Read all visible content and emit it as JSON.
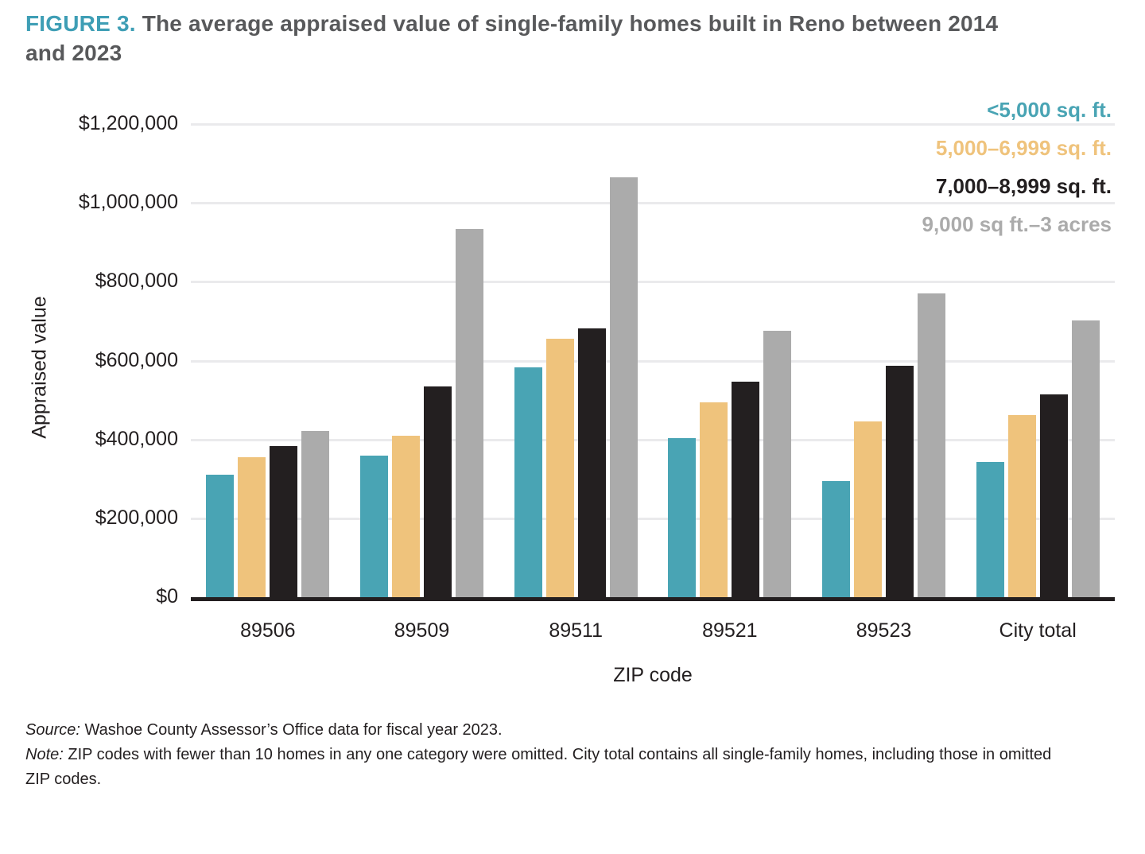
{
  "figure": {
    "label": "FIGURE 3.",
    "title": "The average appraised value of single-family homes built in Reno between 2014 and 2023"
  },
  "chart_data": {
    "type": "bar",
    "title": "FIGURE 3. The average appraised value of single-family homes built in Reno between 2014 and 2023",
    "categories": [
      "89506",
      "89509",
      "89511",
      "89521",
      "89523",
      "City total"
    ],
    "series": [
      {
        "name": "<5,000 sq. ft.",
        "color": "#49A4B4",
        "values": [
          310000,
          360000,
          583000,
          404000,
          295000,
          343000
        ]
      },
      {
        "name": "5,000–6,999 sq. ft.",
        "color": "#EFC37C",
        "values": [
          355000,
          410000,
          655000,
          494000,
          445000,
          461000
        ]
      },
      {
        "name": "7,000–8,999 sq. ft.",
        "color": "#231F20",
        "values": [
          383000,
          535000,
          682000,
          546000,
          586000,
          514000
        ]
      },
      {
        "name": "9,000 sq ft.–3 acres",
        "color": "#ABABAB",
        "values": [
          421000,
          933000,
          1065000,
          675000,
          770000,
          701000
        ]
      }
    ],
    "xlabel": "ZIP code",
    "ylabel": "Appraised value",
    "ylim": [
      0,
      1200000
    ],
    "yticks": [
      {
        "value": 1200000,
        "label": "$1,200,000"
      },
      {
        "value": 1000000,
        "label": "$1,000,000"
      },
      {
        "value": 800000,
        "label": "$800,000"
      },
      {
        "value": 600000,
        "label": "$600,000"
      },
      {
        "value": 400000,
        "label": "$400,000"
      },
      {
        "value": 200000,
        "label": "$200,000"
      },
      {
        "value": 0,
        "label": "$0"
      }
    ],
    "grid": true,
    "legend_position": "top-right"
  },
  "footer": {
    "source_label": "Source:",
    "source_text": "Washoe County Assessor’s Office data for fiscal year 2023.",
    "note_label": "Note:",
    "note_text": "ZIP codes with fewer than 10 homes in any one category were omitted. City total contains all single-family homes, including those in omitted ZIP codes."
  },
  "colors": {
    "accent_teal": "#3E9EB5",
    "title_gray": "#58595B",
    "bar_teal": "#49A4B4",
    "bar_orange": "#EFC37C",
    "bar_black": "#231F20",
    "bar_gray": "#ABABAB",
    "gridline": "#EAEAEC",
    "axis": "#231F20"
  }
}
